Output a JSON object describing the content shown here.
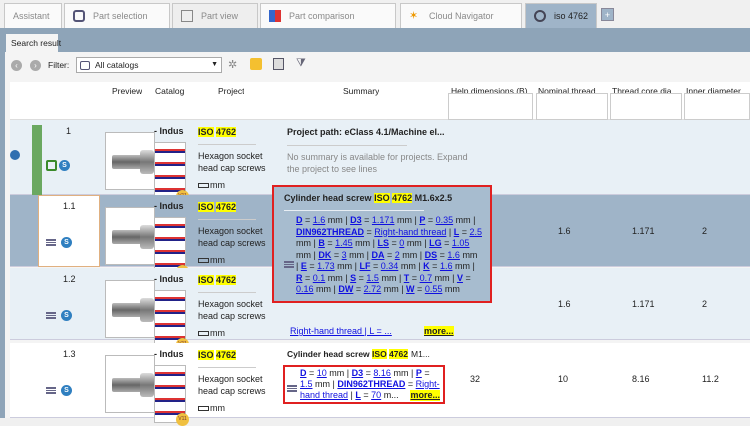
{
  "tabs": [
    {
      "label": "Assistant",
      "icon": "none"
    },
    {
      "label": "Part selection",
      "icon": "catalog-stack-icon"
    },
    {
      "label": "Part view",
      "icon": "cubes-icon"
    },
    {
      "label": "Part comparison",
      "icon": "compare-icon"
    },
    {
      "label": "Cloud Navigator",
      "icon": "network-icon"
    },
    {
      "label": "iso 4762",
      "icon": "text-search-icon",
      "active": true
    }
  ],
  "add_tab": "+",
  "subtab": "Search result",
  "toolbar": {
    "filter_label": "Filter:",
    "filter_value": "All catalogs"
  },
  "columns": [
    "Preview",
    "Catalog",
    "Project",
    "Summary",
    "Help dimensions (B)",
    "Nominal thread ...",
    "Thread core dia...",
    "Inner diameter ..."
  ],
  "rows": [
    {
      "id": "1",
      "catalog": "- Indus",
      "project": "ISO 4762",
      "project_desc": "Hexagon socket head cap screws",
      "unit": "mm",
      "summary_title": "Project path: eClass 4.1/Machine el...",
      "summary_note": "No summary is available for projects. Expand the project to see lines"
    },
    {
      "id": "1.1",
      "catalog": "- Indus",
      "project": "ISO 4762",
      "project_desc": "Hexagon socket head cap screws",
      "unit": "mm",
      "help": "",
      "nominal": "1.6",
      "core": "1.171",
      "inner": "2"
    },
    {
      "id": "1.2",
      "catalog": "- Indus",
      "project": "ISO 4762",
      "project_desc": "Hexagon socket head cap screws",
      "unit": "mm",
      "help": "",
      "nominal": "1.6",
      "core": "1.171",
      "inner": "2",
      "summary_tail": "Right-hand thread | L = ..."
    },
    {
      "id": "1.3",
      "catalog": "- Indus",
      "project": "ISO 4762",
      "project_desc": "Hexagon socket head cap screws",
      "unit": "mm",
      "summary_title": "Cylinder head screw ISO 4762 M1...",
      "help": "32",
      "nominal": "10",
      "core": "8.16",
      "inner": "11.2"
    }
  ],
  "more_label": "more...",
  "tooltip": {
    "title_prefix": "Cylinder head screw",
    "hl1": "ISO",
    "hl2": "4762",
    "title_suffix": "M1.6x2.5",
    "params": [
      {
        "k": "D",
        "v": "1.6",
        "u": "mm"
      },
      {
        "k": "D3",
        "v": "1.171",
        "u": "mm"
      },
      {
        "k": "P",
        "v": "0.35",
        "u": "mm"
      },
      {
        "k": "DIN962THREAD",
        "v": "Right-hand thread",
        "u": ""
      },
      {
        "k": "L",
        "v": "2.5",
        "u": "mm"
      },
      {
        "k": "B",
        "v": "1.45",
        "u": "mm"
      },
      {
        "k": "LS",
        "v": "0",
        "u": "mm"
      },
      {
        "k": "LG",
        "v": "1.05",
        "u": "mm"
      },
      {
        "k": "DK",
        "v": "3",
        "u": "mm"
      },
      {
        "k": "DA",
        "v": "2",
        "u": "mm"
      },
      {
        "k": "DS",
        "v": "1.6",
        "u": "mm"
      },
      {
        "k": "E",
        "v": "1.73",
        "u": "mm"
      },
      {
        "k": "LF",
        "v": "0.34",
        "u": "mm"
      },
      {
        "k": "K",
        "v": "1.6",
        "u": "mm"
      },
      {
        "k": "R",
        "v": "0.1",
        "u": "mm"
      },
      {
        "k": "S",
        "v": "1.5",
        "u": "mm"
      },
      {
        "k": "T",
        "v": "0.7",
        "u": "mm"
      },
      {
        "k": "V",
        "v": "0.16",
        "u": "mm"
      },
      {
        "k": "DW",
        "v": "2.72",
        "u": "mm"
      },
      {
        "k": "W",
        "v": "0.55",
        "u": "mm"
      }
    ]
  },
  "row13_params": [
    {
      "k": "D",
      "v": "10",
      "u": "mm"
    },
    {
      "k": "D3",
      "v": "8.16",
      "u": "mm"
    },
    {
      "k": "P",
      "v": "1.5",
      "u": "mm"
    },
    {
      "k": "DIN962THREAD",
      "v": "Right-hand thread",
      "u": ""
    },
    {
      "k": "L",
      "v": "70",
      "u": "m..."
    }
  ],
  "colors": {
    "selected_row": "#9fb4c8",
    "highlight": "#ffff00",
    "link": "#1010e0",
    "callout_border": "#e02020",
    "project_bar": "#6aa860"
  }
}
